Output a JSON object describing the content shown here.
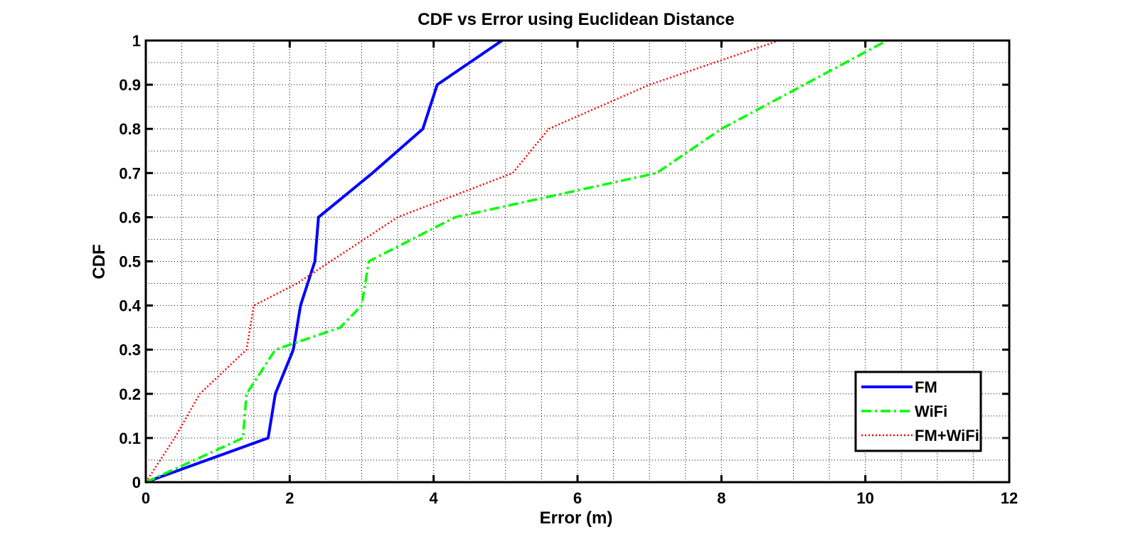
{
  "chart_data": {
    "type": "line",
    "title": "CDF vs Error using Euclidean Distance",
    "xlabel": "Error (m)",
    "ylabel": "CDF",
    "xlim": [
      0,
      12
    ],
    "ylim": [
      0,
      1
    ],
    "xticks": [
      0,
      2,
      4,
      6,
      8,
      10,
      12
    ],
    "xtick_labels": [
      "0",
      "2",
      "4",
      "6",
      "8",
      "10",
      "12"
    ],
    "yticks": [
      0,
      0.1,
      0.2,
      0.3,
      0.4,
      0.5,
      0.6,
      0.7,
      0.8,
      0.9,
      1
    ],
    "ytick_labels": [
      "0",
      "0.1",
      "0.2",
      "0.3",
      "0.4",
      "0.5",
      "0.6",
      "0.7",
      "0.8",
      "0.9",
      "1"
    ],
    "grid": true,
    "legend_position": "bottom-right",
    "series": [
      {
        "name": "FM",
        "color": "#0000ff",
        "style": "solid",
        "x": [
          0,
          1.7,
          1.8,
          2.05,
          2.15,
          2.35,
          2.4,
          3.15,
          3.85,
          4.05,
          4.95
        ],
        "y": [
          0,
          0.1,
          0.2,
          0.3,
          0.4,
          0.5,
          0.6,
          0.7,
          0.8,
          0.9,
          1.0
        ]
      },
      {
        "name": "WiFi",
        "color": "#00ff00",
        "style": "dashdot",
        "x": [
          0,
          1.35,
          1.4,
          1.8,
          2.7,
          3.0,
          3.1,
          4.3,
          7.1,
          8.0,
          10.3
        ],
        "y": [
          0,
          0.1,
          0.2,
          0.3,
          0.35,
          0.4,
          0.5,
          0.6,
          0.7,
          0.8,
          1.0
        ]
      },
      {
        "name": "FM+WiFi",
        "color": "#ff0000",
        "style": "dotted",
        "x": [
          0,
          0.4,
          0.75,
          1.4,
          1.5,
          2.1,
          3.5,
          5.1,
          5.6,
          7.0,
          8.8
        ],
        "y": [
          0,
          0.1,
          0.2,
          0.3,
          0.4,
          0.45,
          0.6,
          0.7,
          0.8,
          0.9,
          1.0
        ]
      }
    ]
  }
}
